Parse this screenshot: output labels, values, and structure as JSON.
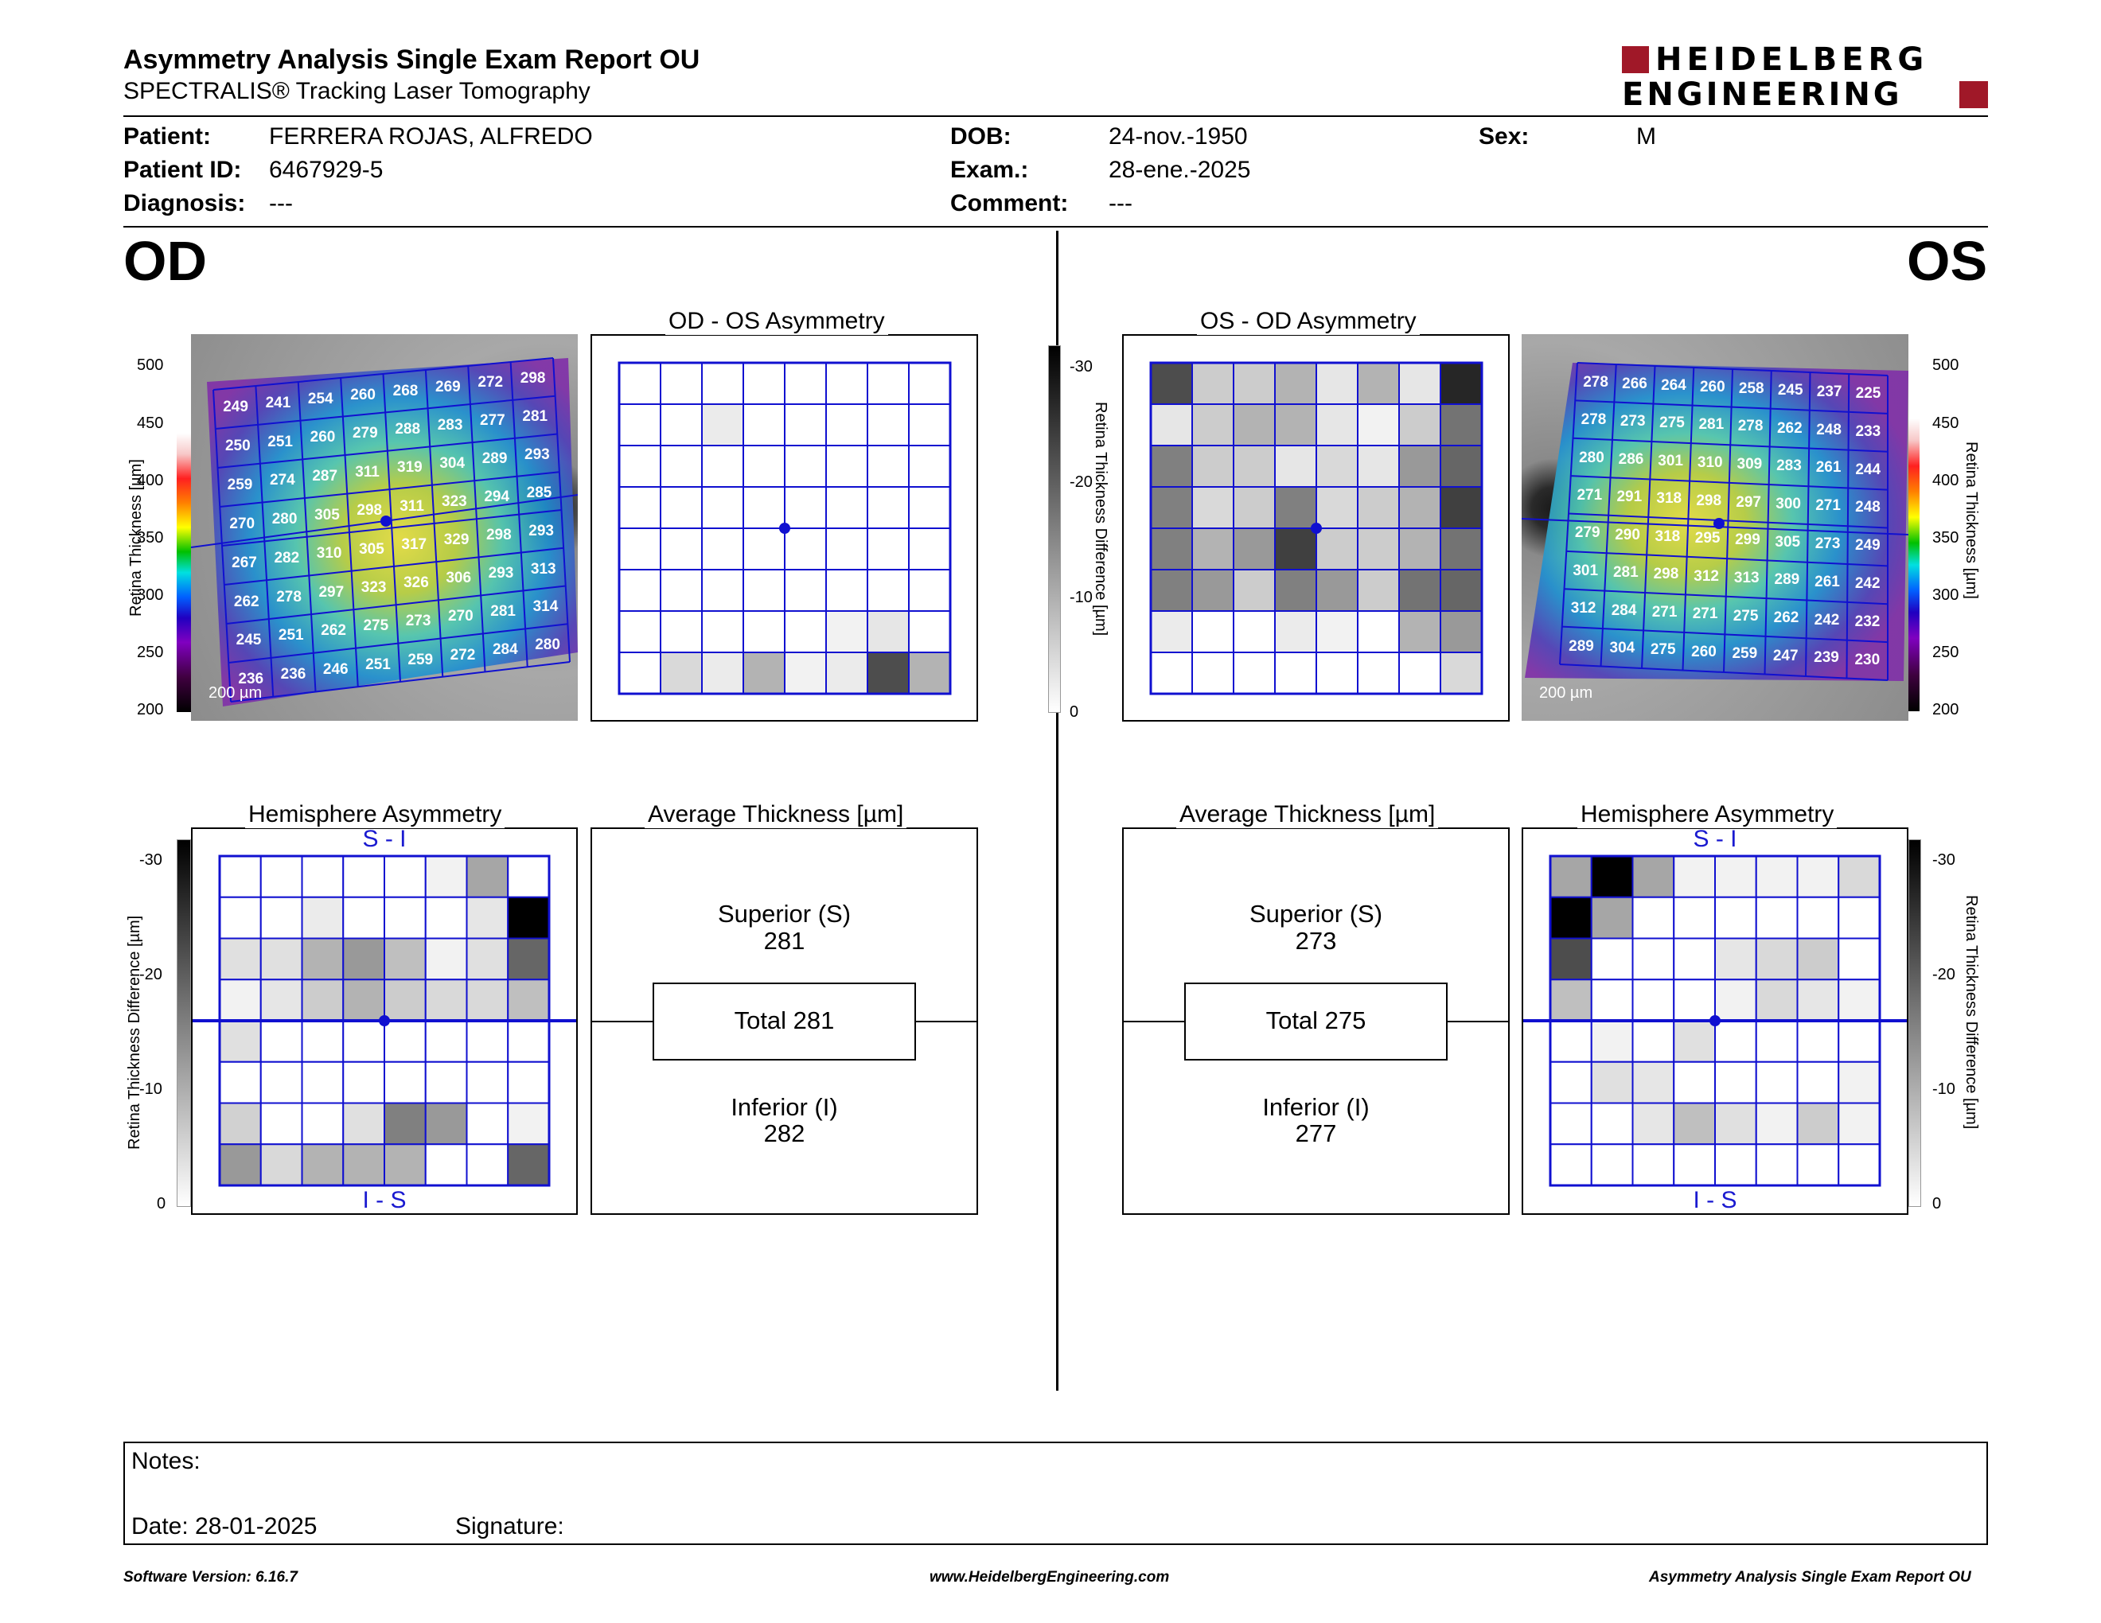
{
  "header": {
    "title": "Asymmetry Analysis Single Exam Report OU",
    "subtitle": "SPECTRALIS® Tracking Laser Tomography",
    "logo_line1": "HEIDELBERG",
    "logo_line2": "ENGINEERING"
  },
  "patient": {
    "patient_label": "Patient:",
    "patient_value": "FERRERA ROJAS, ALFREDO",
    "id_label": "Patient ID:",
    "id_value": "6467929-5",
    "diagnosis_label": "Diagnosis:",
    "diagnosis_value": "---",
    "dob_label": "DOB:",
    "dob_value": "24-nov.-1950",
    "exam_label": "Exam.:",
    "exam_value": "28-ene.-2025",
    "comment_label": "Comment:",
    "comment_value": "---",
    "sex_label": "Sex:",
    "sex_value": "M"
  },
  "od": {
    "eye_label": "OD",
    "asym_title": "OD - OS Asymmetry",
    "hemi_title": "Hemisphere Asymmetry",
    "avg_title": "Average Thickness [µm]",
    "superior_label": "Superior (S)",
    "superior_value": "281",
    "total_label": "Total 281",
    "inferior_label": "Inferior (I)",
    "inferior_value": "282",
    "scale_bar": "200 µm",
    "thickness_grid": [
      [
        "249",
        "241",
        "254",
        "260",
        "268",
        "269",
        "272",
        "298"
      ],
      [
        "250",
        "251",
        "260",
        "279",
        "288",
        "283",
        "277",
        "281"
      ],
      [
        "259",
        "274",
        "287",
        "311",
        "319",
        "304",
        "289",
        "293"
      ],
      [
        "270",
        "280",
        "305",
        "298",
        "311",
        "323",
        "294",
        "285"
      ],
      [
        "267",
        "282",
        "310",
        "305",
        "317",
        "329",
        "298",
        "293"
      ],
      [
        "262",
        "278",
        "297",
        "323",
        "326",
        "306",
        "293",
        "313"
      ],
      [
        "245",
        "251",
        "262",
        "275",
        "273",
        "270",
        "281",
        "314"
      ],
      [
        "236",
        "236",
        "246",
        "251",
        "259",
        "272",
        "284",
        "280"
      ]
    ],
    "asym_shades": [
      [
        0,
        0,
        0,
        0,
        0,
        0,
        0,
        0
      ],
      [
        0,
        0,
        0.08,
        0,
        0,
        0,
        0,
        0
      ],
      [
        0,
        0,
        0,
        0,
        0,
        0,
        0,
        0
      ],
      [
        0,
        0,
        0,
        0,
        0,
        0,
        0,
        0
      ],
      [
        0,
        0,
        0,
        0,
        0,
        0,
        0,
        0
      ],
      [
        0,
        0,
        0,
        0,
        0,
        0,
        0,
        0
      ],
      [
        0,
        0,
        0,
        0,
        0,
        0.05,
        0.1,
        0
      ],
      [
        0,
        0.15,
        0.08,
        0.3,
        0.05,
        0.08,
        0.7,
        0.3
      ]
    ],
    "hemi_shades": [
      [
        0,
        0,
        0,
        0,
        0,
        0.05,
        0.35,
        0
      ],
      [
        0,
        0,
        0.08,
        0,
        0,
        0,
        0.1,
        1.0
      ],
      [
        0.12,
        0.12,
        0.3,
        0.4,
        0.25,
        0.05,
        0.12,
        0.6
      ],
      [
        0.05,
        0.1,
        0.2,
        0.3,
        0.2,
        0.15,
        0.15,
        0.25
      ],
      [
        0.12,
        0,
        0,
        0,
        0,
        0,
        0,
        0
      ],
      [
        0,
        0,
        0,
        0,
        0,
        0,
        0,
        0
      ],
      [
        0.18,
        0,
        0,
        0.12,
        0.5,
        0.4,
        0,
        0.05
      ],
      [
        0.4,
        0.15,
        0.3,
        0.3,
        0.3,
        0,
        0,
        0.6
      ]
    ]
  },
  "os": {
    "eye_label": "OS",
    "asym_title": "OS - OD Asymmetry",
    "hemi_title": "Hemisphere Asymmetry",
    "avg_title": "Average Thickness [µm]",
    "superior_label": "Superior (S)",
    "superior_value": "273",
    "total_label": "Total 275",
    "inferior_label": "Inferior (I)",
    "inferior_value": "277",
    "scale_bar": "200 µm",
    "thickness_grid": [
      [
        "278",
        "266",
        "264",
        "260",
        "258",
        "245",
        "237",
        "225"
      ],
      [
        "278",
        "273",
        "275",
        "281",
        "278",
        "262",
        "248",
        "233"
      ],
      [
        "280",
        "286",
        "301",
        "310",
        "309",
        "283",
        "261",
        "244"
      ],
      [
        "271",
        "291",
        "318",
        "298",
        "297",
        "300",
        "271",
        "248"
      ],
      [
        "279",
        "290",
        "318",
        "295",
        "299",
        "305",
        "273",
        "249"
      ],
      [
        "301",
        "281",
        "298",
        "312",
        "313",
        "289",
        "261",
        "242"
      ],
      [
        "312",
        "284",
        "271",
        "271",
        "275",
        "262",
        "242",
        "232"
      ],
      [
        "289",
        "304",
        "275",
        "260",
        "259",
        "247",
        "239",
        "230"
      ]
    ],
    "asym_shades": [
      [
        0.7,
        0.2,
        0.2,
        0.3,
        0.1,
        0.3,
        0.1,
        0.85
      ],
      [
        0.1,
        0.2,
        0.3,
        0.3,
        0.1,
        0.05,
        0.2,
        0.55
      ],
      [
        0.5,
        0.2,
        0.2,
        0.1,
        0.15,
        0.1,
        0.4,
        0.6
      ],
      [
        0.5,
        0.15,
        0.2,
        0.5,
        0.15,
        0.2,
        0.3,
        0.75
      ],
      [
        0.5,
        0.3,
        0.4,
        0.75,
        0.2,
        0.2,
        0.3,
        0.55
      ],
      [
        0.5,
        0.4,
        0.2,
        0.5,
        0.4,
        0.2,
        0.55,
        0.6
      ],
      [
        0.08,
        0,
        0,
        0.08,
        0.05,
        0,
        0.3,
        0.4
      ],
      [
        0,
        0,
        0,
        0,
        0,
        0,
        0,
        0.15
      ]
    ],
    "hemi_shades": [
      [
        0.35,
        1.0,
        0.35,
        0.05,
        0.05,
        0.05,
        0.05,
        0.15
      ],
      [
        1.0,
        0.35,
        0,
        0,
        0,
        0,
        0,
        0
      ],
      [
        0.7,
        0,
        0,
        0,
        0.1,
        0.15,
        0.2,
        0
      ],
      [
        0.25,
        0,
        0,
        0,
        0.05,
        0.15,
        0.1,
        0.05
      ],
      [
        0,
        0.05,
        0,
        0.12,
        0,
        0,
        0,
        0
      ],
      [
        0,
        0.12,
        0.1,
        0,
        0,
        0,
        0,
        0.05
      ],
      [
        0,
        0,
        0.1,
        0.25,
        0.12,
        0.05,
        0.2,
        0.05
      ],
      [
        0,
        0,
        0,
        0,
        0,
        0,
        0,
        0
      ]
    ]
  },
  "hemi_top_label": "S - I",
  "hemi_bottom_label": "I - S",
  "thickness_scale": {
    "label": "Retina Thickness [µm]",
    "ticks": [
      "500",
      "450",
      "400",
      "350",
      "300",
      "250",
      "200"
    ]
  },
  "difference_scale": {
    "label": "Retina Thickness Difference [µm]",
    "ticks": [
      "-30",
      "-20",
      "-10",
      "0"
    ]
  },
  "notes": {
    "notes_label": "Notes:",
    "date_label": "Date: 28-01-2025",
    "signature_label": "Signature:"
  },
  "footer": {
    "software": "Software Version: 6.16.7",
    "website": "www.HeidelbergEngineering.com",
    "report": "Asymmetry Analysis Single Exam Report OU"
  },
  "colors": {
    "grid_blue": "#1010d0",
    "logo_red": "#a01828",
    "label_blue": "#1a1ad0"
  }
}
